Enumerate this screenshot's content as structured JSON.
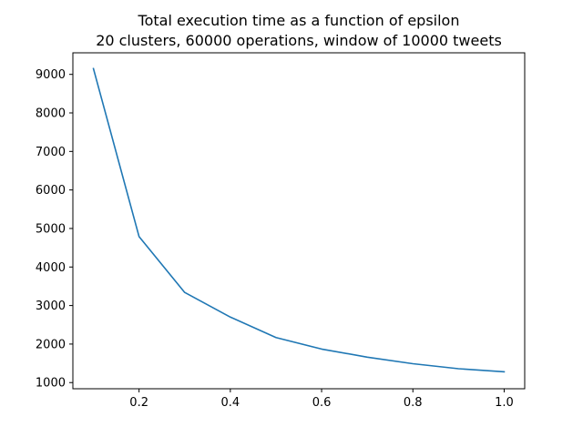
{
  "chart_data": {
    "type": "line",
    "title": "Total execution time as a function of epsilon",
    "subtitle": "20 clusters, 60000 operations, window of 10000 tweets",
    "xlabel": "",
    "ylabel": "",
    "xlim": [
      0.055,
      1.045
    ],
    "ylim": [
      840,
      9560
    ],
    "x": [
      0.1,
      0.2,
      0.3,
      0.4,
      0.5,
      0.6,
      0.7,
      0.8,
      0.9,
      1.0
    ],
    "series": [
      {
        "values": [
          9150,
          4790,
          3340,
          2700,
          2170,
          1870,
          1660,
          1490,
          1360,
          1280
        ],
        "color": "#1f77b4"
      }
    ],
    "x_ticks": [
      0.2,
      0.4,
      0.6,
      0.8,
      1.0
    ],
    "x_tick_labels": [
      "0.2",
      "0.4",
      "0.6",
      "0.8",
      "1.0"
    ],
    "y_ticks": [
      1000,
      2000,
      3000,
      4000,
      5000,
      6000,
      7000,
      8000,
      9000
    ],
    "y_tick_labels": [
      "1000",
      "2000",
      "3000",
      "4000",
      "5000",
      "6000",
      "7000",
      "8000",
      "9000"
    ],
    "grid": false,
    "legend": "none"
  }
}
